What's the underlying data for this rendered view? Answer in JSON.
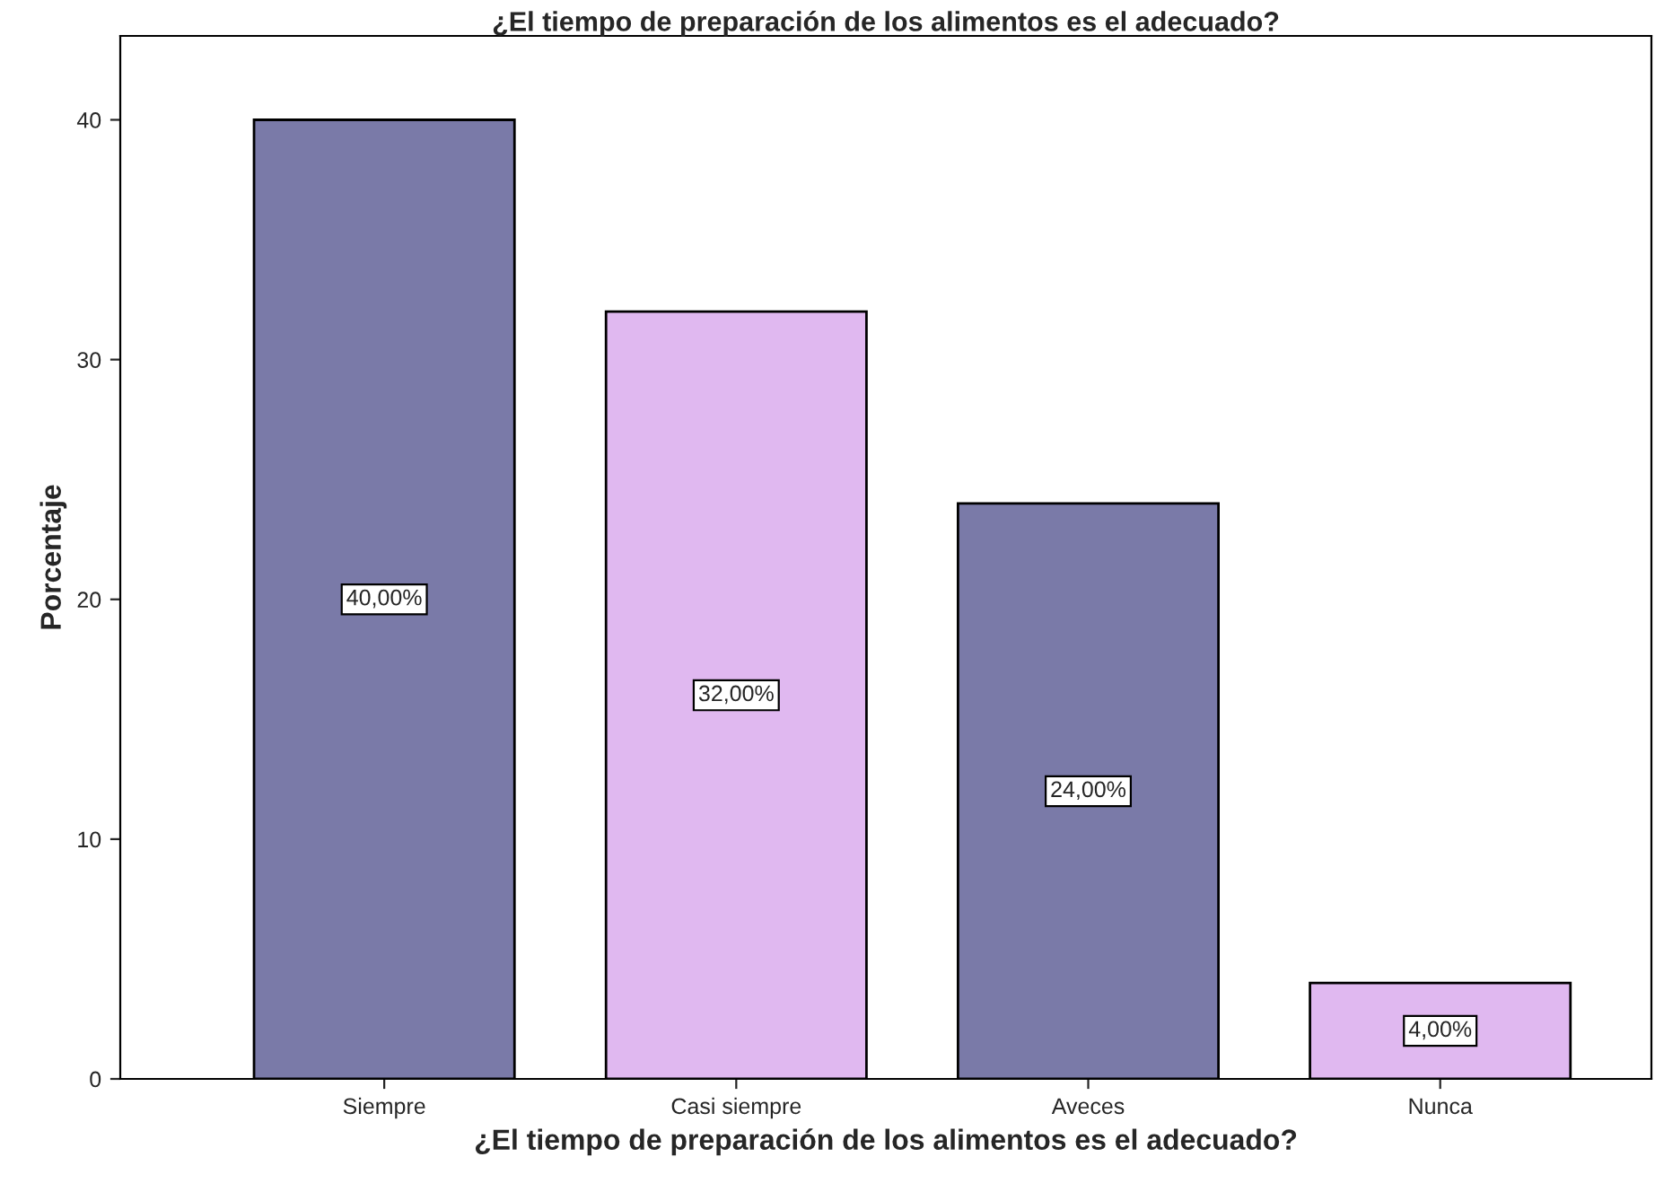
{
  "chart_data": {
    "type": "bar",
    "title": "¿El tiempo de preparación de los alimentos es el adecuado?",
    "xlabel": "¿El tiempo de preparación de los alimentos es el adecuado?",
    "ylabel": "Porcentaje",
    "categories": [
      "Siempre",
      "Casi siempre",
      "Aveces",
      "Nunca"
    ],
    "values": [
      40,
      32,
      24,
      4
    ],
    "colors": [
      "#7a7aa8",
      "#e0b8f0",
      "#7a7aa8",
      "#e0b8f0"
    ],
    "value_labels": [
      "40,00%",
      "32,00%",
      "24,00%",
      "4,00%"
    ],
    "ylim": [
      0,
      43.5
    ],
    "yticks": [
      0,
      10,
      20,
      30,
      40
    ],
    "grid": false,
    "legend": false
  }
}
